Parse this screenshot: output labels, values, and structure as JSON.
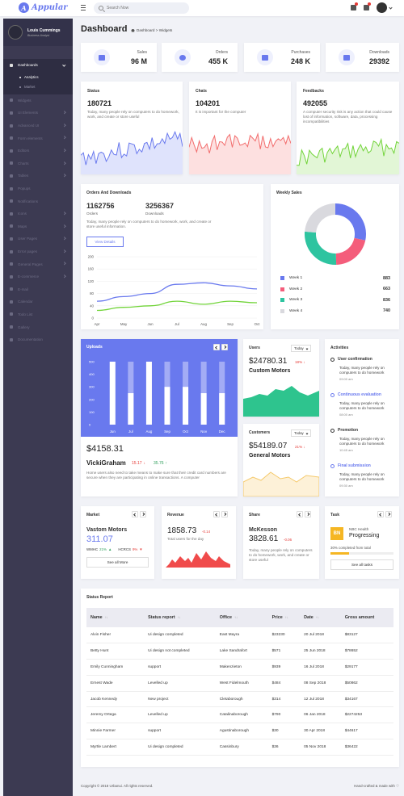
{
  "app": {
    "logo_letter": "A",
    "logo_text": "Appular"
  },
  "topbar": {
    "search_placeholder": "Search Now"
  },
  "profile": {
    "name": "Louis Cummings",
    "role": "Business Analyst"
  },
  "sidebar": {
    "items": [
      {
        "label": "Dashboards",
        "active": true,
        "chevron": true
      },
      {
        "label": "Widgets",
        "chevron": false
      },
      {
        "label": "UI Elements",
        "chevron": true
      },
      {
        "label": "Advanced UI",
        "chevron": true
      },
      {
        "label": "Form elements",
        "chevron": true
      },
      {
        "label": "Editors",
        "chevron": true
      },
      {
        "label": "Charts",
        "chevron": true
      },
      {
        "label": "Tables",
        "chevron": true
      },
      {
        "label": "Popups",
        "chevron": false
      },
      {
        "label": "Notifications",
        "chevron": false
      },
      {
        "label": "Icons",
        "chevron": true
      },
      {
        "label": "Maps",
        "chevron": true
      },
      {
        "label": "User Pages",
        "chevron": true
      },
      {
        "label": "Error pages",
        "chevron": true
      },
      {
        "label": "General Pages",
        "chevron": true
      },
      {
        "label": "E-commerce",
        "chevron": true
      },
      {
        "label": "E-mail",
        "chevron": false
      },
      {
        "label": "Calendar",
        "chevron": false
      },
      {
        "label": "Todo List",
        "chevron": false
      },
      {
        "label": "Gallery",
        "chevron": false
      },
      {
        "label": "Documentation",
        "chevron": false
      }
    ],
    "subitems": [
      {
        "label": "Analytics",
        "on": true
      },
      {
        "label": "Market",
        "on": false
      }
    ]
  },
  "header": {
    "title": "Dashboard",
    "breadcrumb": "Dashboard > Widgets"
  },
  "stats": [
    {
      "label": "Sales",
      "value": "96 M"
    },
    {
      "label": "Orders",
      "value": "455 K"
    },
    {
      "label": "Purchases",
      "value": "248 K"
    },
    {
      "label": "Downloads",
      "value": "29392"
    }
  ],
  "mini_charts": [
    {
      "title": "Status",
      "value": "180721",
      "desc": "Today, many people rely on computers to do homework, work, and create or store useful",
      "color": "#6979ee",
      "fill": "#dfe3fc"
    },
    {
      "title": "Chats",
      "value": "104201",
      "desc": "It is important for the computer",
      "color": "#f26d6d",
      "fill": "#fde0e0"
    },
    {
      "title": "Feedbacks",
      "value": "492055",
      "desc": "A computer security risk is any action that could cause lost of information, software, data, processing incompatibilities",
      "color": "#72d43a",
      "fill": "#e2f6d6"
    }
  ],
  "orders": {
    "title": "Orders And Downloads",
    "orders_value": "1162756",
    "orders_label": "Orders",
    "downloads_value": "3256367",
    "downloads_label": "Downloads",
    "desc": "Today, many people rely on computers to do homework, work, and create or store useful information.",
    "button": "View Details"
  },
  "weekly": {
    "title": "Weekly Sales",
    "weeks": [
      {
        "label": "Week 1",
        "value": "883",
        "color": "#6979ee"
      },
      {
        "label": "Week 2",
        "value": "663",
        "color": "#f45d7b"
      },
      {
        "label": "Week 3",
        "value": "836",
        "color": "#2ec4a0"
      },
      {
        "label": "Week 4",
        "value": "740",
        "color": "#d9d9de"
      }
    ]
  },
  "uploads": {
    "title": "Uploads",
    "amount": "$4158.31",
    "name": "VickiGraham",
    "chg1": "15.17",
    "chg2": "35.76",
    "desc": "Home users also need to take means to make sure that their credit card numbers are secure when they are participating in online transactions. A computer",
    "ticks": [
      "500",
      "400",
      "300",
      "200",
      "100",
      "0"
    ]
  },
  "users": {
    "title": "Users",
    "dd": "Today",
    "amount": "$24780.31",
    "pct": "18%",
    "name": "Custom Motors"
  },
  "customers": {
    "title": "Customers",
    "dd": "Today",
    "amount": "$54189.07",
    "pct": "21%",
    "name": "General Motors"
  },
  "activities": {
    "title": "Activities",
    "items": [
      {
        "title": "User confirmation",
        "text": "Today, many people rely on computers to do homework",
        "time": "09:00 am",
        "color": "#333"
      },
      {
        "title": "Continuous evaluation",
        "text": "Today, many people rely on computers to do homework",
        "time": "08:00 am",
        "color": "#6979ee"
      },
      {
        "title": "Promotion",
        "text": "Today, many people rely on computers to do homework",
        "time": "10:45 am",
        "color": "#333"
      },
      {
        "title": "Final submission",
        "text": "Today, many people rely on computers to do homework",
        "time": "09:30 am",
        "color": "#6979ee"
      }
    ]
  },
  "market": {
    "title": "Market",
    "name": "Vastom Motors",
    "value": "311.07",
    "t1": "WMHC",
    "p1": "21%",
    "t2": "HCRCS",
    "p2": "9%",
    "button": "See all More"
  },
  "revenue": {
    "title": "Revenue",
    "value": "1858.73",
    "pct": "-0.14",
    "desc": "Total users for the day"
  },
  "share": {
    "title": "Share",
    "name": "McKesson",
    "value": "3828.61",
    "pct": "-0.06",
    "desc": "Today, many people rely on computers to do homework, work, and create or store useful"
  },
  "task": {
    "title": "Task",
    "badge": "BN",
    "sub": "NBC Health",
    "status": "Progressing",
    "progress_text": "30% completed from total",
    "progress": 0.3,
    "button": "See all tasks"
  },
  "status_report": {
    "title": "Status Report",
    "columns": [
      "Name",
      "Status report",
      "Office",
      "Price",
      "Date",
      "Gross amount"
    ],
    "rows": [
      [
        "Alvin Fisher",
        "Ui design completed",
        "East Mayra",
        "$23230",
        "20 Jul 2018",
        "$83127"
      ],
      [
        "Betty Hunt",
        "Ui design not completed",
        "Lake Sandrafort",
        "$571",
        "25 Jun 2018",
        "$78652"
      ],
      [
        "Emily Cunningham",
        "support",
        "Makenzieton",
        "$939",
        "16 Jul 2018",
        "$29177"
      ],
      [
        "Ernest Wade",
        "Levelled up",
        "West Fidelmouth",
        "$484",
        "08 Sep 2018",
        "$50862"
      ],
      [
        "Jacob Kennedy",
        "New project",
        "Cletaborough",
        "$314",
        "12 Jul 2018",
        "$34167"
      ],
      [
        "Jeremy Ortega",
        "Levelled up",
        "Catalinaborough",
        "$790",
        "06 Jan 2018",
        "$2274253"
      ],
      [
        "Minnie Farmer",
        "support",
        "Agustinaborough",
        "$30",
        "30 Apr 2018",
        "$44617"
      ],
      [
        "Myrtle Lambert",
        "Ui design completed",
        "Cassinbury",
        "$36",
        "05 Nov 2018",
        "$36422"
      ]
    ]
  },
  "footer": {
    "left": "Copyright © 2018 Urbanui. All rights reserved.",
    "right": "Hand-crafted & made with ♡"
  },
  "chart_data": [
    {
      "type": "line",
      "categories": [
        "Apr",
        "May",
        "Jun",
        "Jul",
        "Aug",
        "Sep",
        "Oct"
      ],
      "series": [
        {
          "values": [
            55,
            70,
            80,
            110,
            115,
            105,
            95
          ],
          "color": "#6979ee"
        },
        {
          "values": [
            25,
            35,
            40,
            55,
            45,
            55,
            50
          ],
          "color": "#72d43a"
        }
      ],
      "ylim": [
        0,
        200
      ],
      "yticks": [
        "0",
        "40",
        "80",
        "120",
        "160",
        "200"
      ]
    },
    {
      "type": "pie",
      "labels": [
        "Week 1",
        "Week 2",
        "Week 3",
        "Week 4"
      ],
      "values": [
        883,
        663,
        836,
        740
      ]
    },
    {
      "type": "bar",
      "categories": [
        "Jun",
        "Jul",
        "Aug",
        "Sep",
        "Oct",
        "Nov",
        "Dec"
      ],
      "values": [
        500,
        250,
        500,
        300,
        300,
        250,
        250
      ],
      "ylim": [
        0,
        500
      ]
    }
  ]
}
